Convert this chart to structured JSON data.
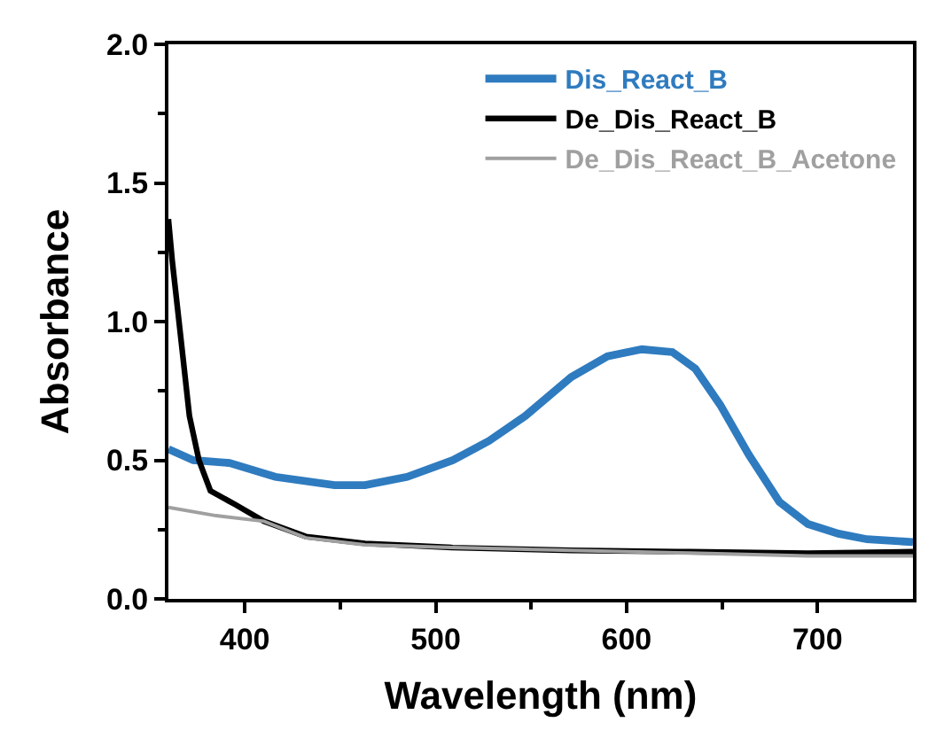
{
  "chart_data": {
    "type": "line",
    "xlabel": "Wavelength (nm)",
    "ylabel": "Absorbance",
    "xlim": [
      360,
      750
    ],
    "ylim": [
      0,
      2
    ],
    "xticks": [
      400,
      {
        "value": 450,
        "label": null
      },
      500,
      {
        "value": 550,
        "label": null
      },
      600,
      {
        "value": 650,
        "label": null
      },
      700
    ],
    "yticks": [
      {
        "value": 0,
        "label": "0.0"
      },
      {
        "value": 0.25,
        "label": null
      },
      {
        "value": 0.5,
        "label": "0.5"
      },
      {
        "value": 0.75,
        "label": null
      },
      {
        "value": 1,
        "label": "1.0"
      },
      {
        "value": 1.25,
        "label": null
      },
      {
        "value": 1.5,
        "label": "1.5"
      },
      {
        "value": 1.75,
        "label": null
      },
      {
        "value": 2,
        "label": "2.0"
      }
    ],
    "legend": "top right",
    "marker": "none",
    "line_style": "solid",
    "series": [
      {
        "name": "Dis_React_B",
        "color": "#2f7bbf",
        "x": [
          360,
          373,
          392,
          416,
          447,
          463,
          485,
          509,
          528,
          547,
          571,
          590,
          608,
          624,
          636,
          649,
          664,
          680,
          695,
          711,
          726,
          750
        ],
        "values": [
          0.54,
          0.5,
          0.49,
          0.44,
          0.41,
          0.41,
          0.44,
          0.5,
          0.57,
          0.66,
          0.8,
          0.875,
          0.9,
          0.89,
          0.83,
          0.7,
          0.52,
          0.35,
          0.27,
          0.235,
          0.215,
          0.205
        ]
      },
      {
        "name": "De_Dis_React_B",
        "color": "#000000",
        "x": [
          360,
          362,
          367,
          371,
          376,
          382,
          395,
          410,
          432,
          463,
          509,
          571,
          633,
          695,
          750
        ],
        "values": [
          1.37,
          1.22,
          0.91,
          0.66,
          0.5,
          0.39,
          0.34,
          0.28,
          0.225,
          0.2,
          0.185,
          0.175,
          0.17,
          0.165,
          0.17
        ]
      },
      {
        "name": "De_Dis_React_B_Acetone",
        "color": "#a0a0a0",
        "x": [
          360,
          385,
          410,
          432,
          463,
          509,
          571,
          633,
          695,
          750
        ],
        "values": [
          0.33,
          0.3,
          0.28,
          0.22,
          0.195,
          0.185,
          0.175,
          0.165,
          0.155,
          0.155
        ]
      }
    ]
  }
}
